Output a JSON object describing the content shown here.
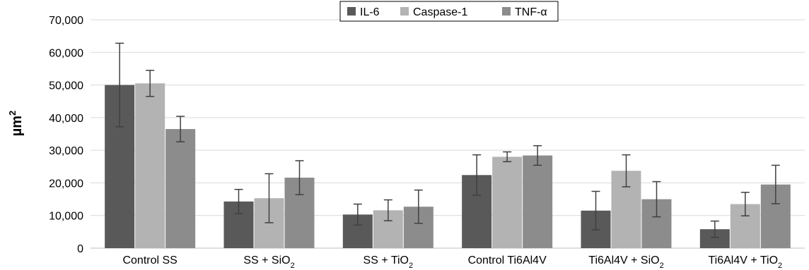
{
  "chart_data": {
    "type": "bar",
    "title": "",
    "xlabel": "",
    "ylabel": "µm²",
    "ylabel_base": "µm",
    "ylabel_sup": "2",
    "ylim": [
      0,
      70000
    ],
    "yticks": [
      0,
      10000,
      20000,
      30000,
      40000,
      50000,
      60000,
      70000
    ],
    "ytick_labels": [
      "0",
      "10,000",
      "20,000",
      "30,000",
      "40,000",
      "50,000",
      "60,000",
      "70,000"
    ],
    "grid": true,
    "legend_position": "top-center",
    "categories": [
      {
        "base": "Control SS",
        "sub": ""
      },
      {
        "base": "SS + SiO",
        "sub": "2"
      },
      {
        "base": "SS + TiO",
        "sub": "2"
      },
      {
        "base": "Control Ti6Al4V",
        "sub": ""
      },
      {
        "base": "Ti6Al4V + SiO",
        "sub": "2"
      },
      {
        "base": "Ti6Al4V + TiO",
        "sub": "2"
      }
    ],
    "series": [
      {
        "name": "IL-6",
        "color": "#595959",
        "values": [
          50000,
          14300,
          10300,
          22400,
          11500,
          5800
        ],
        "errors": [
          12800,
          3700,
          3200,
          6200,
          5900,
          2500
        ]
      },
      {
        "name": "Caspase-1",
        "color": "#b3b3b3",
        "values": [
          50500,
          15300,
          11600,
          28000,
          23700,
          13500
        ],
        "errors": [
          4000,
          7500,
          3200,
          1500,
          4900,
          3600
        ]
      },
      {
        "name": "TNF-α",
        "color": "#8c8c8c",
        "values": [
          36500,
          21600,
          12700,
          28400,
          15000,
          19500
        ],
        "errors": [
          3900,
          5200,
          5100,
          3000,
          5400,
          5900
        ]
      }
    ]
  }
}
